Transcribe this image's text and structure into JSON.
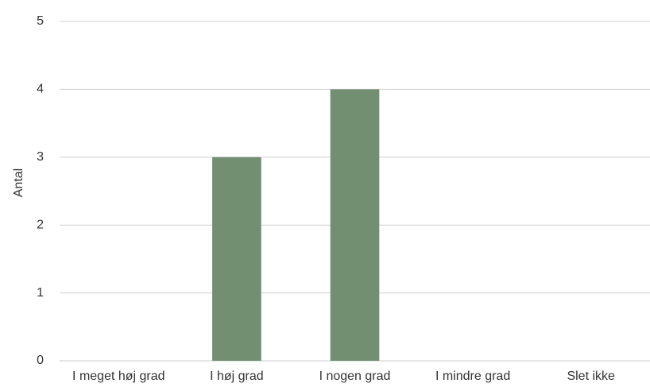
{
  "chart_data": {
    "type": "bar",
    "title": "",
    "xlabel": "",
    "ylabel": "Antal",
    "categories": [
      "I meget høj grad",
      "I høj grad",
      "I nogen grad",
      "I mindre grad",
      "Slet ikke"
    ],
    "values": [
      0,
      3,
      4,
      0,
      0
    ],
    "ylim": [
      0,
      5
    ],
    "yticks": [
      0,
      1,
      2,
      3,
      4,
      5
    ],
    "grid": true,
    "legend": "none",
    "bar_color": "#738f72"
  }
}
